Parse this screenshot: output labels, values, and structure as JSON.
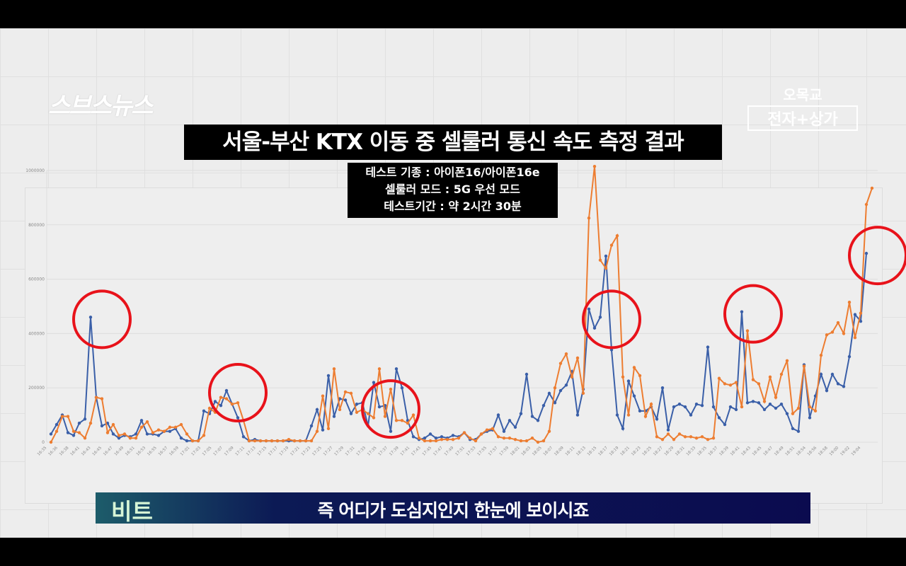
{
  "broadcast": {
    "logo": "스브스뉴스",
    "brand_top": "오목교",
    "brand_bottom": "전자+상가",
    "title": "서울-부산 KTX 이동 중 셀룰러 통신 속도 측정 결과",
    "info_lines": [
      "테스트 기종 : 아이폰16/아이폰16e",
      "셀룰러 모드 : 5G 우선 모드",
      "테스트기간 : 약 2시간 30분"
    ],
    "caption_speaker": "비트",
    "caption_text": "즉 어디가 도심지인지 한눈에 보이시죠"
  },
  "chart_data": {
    "type": "line",
    "title": "",
    "xlabel": "",
    "ylabel": "",
    "ylim": [
      0,
      1000000
    ],
    "y_ticks": [
      "0",
      "200000",
      "400000",
      "600000",
      "800000",
      "1000000"
    ],
    "grid": true,
    "legend": "none",
    "x_tick_labels": [
      "16:35",
      "16:36",
      "16:38",
      "16:41",
      "16:43",
      "16:45",
      "16:47",
      "16:49",
      "16:51",
      "16:53",
      "16:55",
      "16:57",
      "16:59",
      "17:01",
      "17:03",
      "17:05",
      "17:07",
      "17:09",
      "17:11",
      "17:13",
      "17:15",
      "17:17",
      "17:19",
      "17:21",
      "17:23",
      "17:25",
      "17:27",
      "17:29",
      "17:31",
      "17:33",
      "17:35",
      "17:37",
      "17:39",
      "17:41",
      "17:43",
      "17:45",
      "17:47",
      "17:49",
      "17:51",
      "17:53",
      "17:55",
      "17:57",
      "17:59",
      "18:01",
      "18:03",
      "18:05",
      "18:07",
      "18:09",
      "18:11",
      "18:13",
      "18:15",
      "18:17",
      "18:19",
      "18:21",
      "18:23",
      "18:25",
      "18:27",
      "18:29",
      "18:31",
      "18:33",
      "18:35",
      "18:37",
      "18:39",
      "18:41",
      "18:43",
      "18:45",
      "18:47",
      "18:49",
      "18:51",
      "18:54",
      "18:56",
      "18:58",
      "19:00",
      "19:02",
      "19:04"
    ],
    "series": [
      {
        "color": "#3a5fa8",
        "values": [
          30000,
          65000,
          100000,
          35000,
          25000,
          70000,
          85000,
          460000,
          165000,
          60000,
          70000,
          30000,
          15000,
          25000,
          20000,
          30000,
          80000,
          30000,
          30000,
          25000,
          40000,
          40000,
          50000,
          15000,
          5000,
          5000,
          5000,
          115000,
          105000,
          150000,
          135000,
          190000,
          140000,
          90000,
          20000,
          5000,
          10000,
          5000,
          5000,
          5000,
          5000,
          5000,
          5000,
          5000,
          5000,
          5000,
          60000,
          120000,
          45000,
          245000,
          95000,
          160000,
          155000,
          105000,
          140000,
          145000,
          60000,
          220000,
          130000,
          135000,
          40000,
          270000,
          200000,
          80000,
          20000,
          10000,
          15000,
          30000,
          15000,
          20000,
          15000,
          25000,
          20000,
          35000,
          10000,
          10000,
          30000,
          40000,
          45000,
          100000,
          40000,
          80000,
          55000,
          105000,
          250000,
          95000,
          80000,
          135000,
          180000,
          145000,
          190000,
          210000,
          260000,
          100000,
          195000,
          490000,
          420000,
          460000,
          685000,
          340000,
          100000,
          50000,
          225000,
          170000,
          115000,
          115000,
          130000,
          85000,
          200000,
          45000,
          130000,
          140000,
          130000,
          100000,
          140000,
          135000,
          350000,
          130000,
          90000,
          65000,
          130000,
          120000,
          480000,
          145000,
          150000,
          145000,
          120000,
          140000,
          125000,
          140000,
          105000,
          50000,
          40000,
          285000,
          90000,
          170000,
          250000,
          190000,
          250000,
          215000,
          205000,
          315000,
          470000,
          445000,
          695000
        ]
      },
      {
        "color": "#ed7d31",
        "values": [
          0,
          40000,
          95000,
          95000,
          40000,
          35000,
          15000,
          70000,
          165000,
          160000,
          35000,
          65000,
          25000,
          30000,
          15000,
          15000,
          55000,
          75000,
          35000,
          45000,
          40000,
          55000,
          55000,
          65000,
          30000,
          5000,
          5000,
          25000,
          125000,
          110000,
          165000,
          160000,
          140000,
          145000,
          80000,
          5000,
          5000,
          5000,
          5000,
          5000,
          5000,
          5000,
          10000,
          5000,
          5000,
          5000,
          5000,
          40000,
          170000,
          50000,
          270000,
          120000,
          185000,
          180000,
          110000,
          120000,
          105000,
          90000,
          270000,
          95000,
          195000,
          80000,
          80000,
          70000,
          100000,
          15000,
          5000,
          5000,
          5000,
          10000,
          10000,
          10000,
          15000,
          35000,
          15000,
          5000,
          30000,
          45000,
          50000,
          20000,
          15000,
          15000,
          10000,
          5000,
          5000,
          15000,
          0,
          5000,
          40000,
          200000,
          290000,
          325000,
          240000,
          310000,
          180000,
          825000,
          1015000,
          670000,
          640000,
          725000,
          760000,
          240000,
          100000,
          275000,
          245000,
          95000,
          140000,
          20000,
          10000,
          30000,
          10000,
          30000,
          20000,
          20000,
          15000,
          20000,
          10000,
          15000,
          235000,
          215000,
          210000,
          220000,
          130000,
          410000,
          230000,
          215000,
          150000,
          240000,
          165000,
          250000,
          300000,
          105000,
          125000,
          280000,
          130000,
          115000,
          320000,
          395000,
          405000,
          440000,
          400000,
          515000,
          385000,
          475000,
          875000,
          935000
        ]
      }
    ],
    "highlight_circles": {
      "color": "#e8121a",
      "point_indices": [
        7,
        31,
        58,
        97,
        122,
        144
      ]
    }
  }
}
